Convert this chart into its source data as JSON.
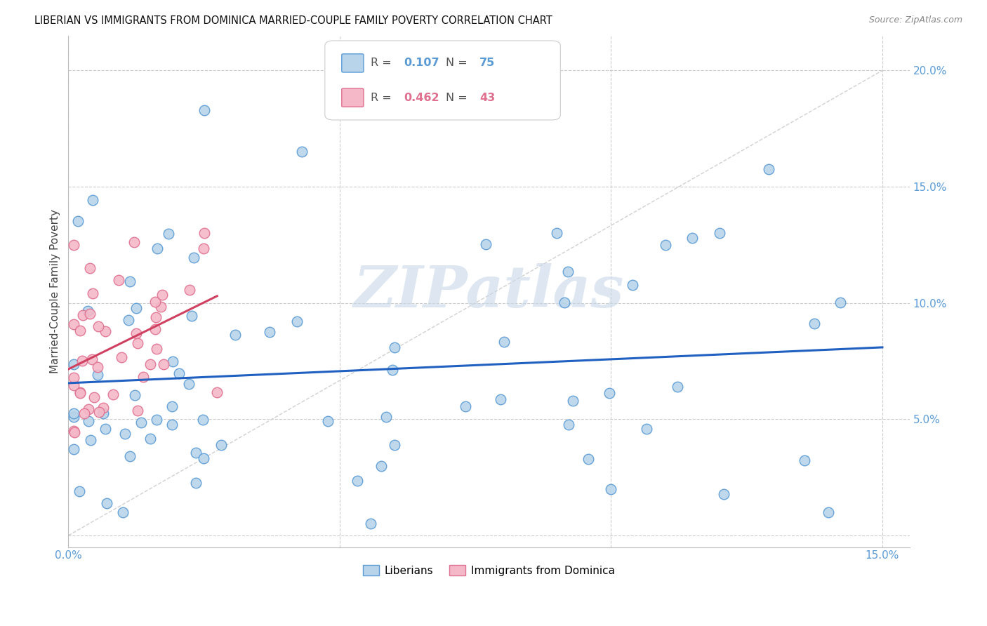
{
  "title": "LIBERIAN VS IMMIGRANTS FROM DOMINICA MARRIED-COUPLE FAMILY POVERTY CORRELATION CHART",
  "source": "Source: ZipAtlas.com",
  "ylabel_label": "Married-Couple Family Poverty",
  "xlim": [
    0.0,
    0.155
  ],
  "ylim": [
    -0.005,
    0.215
  ],
  "liberian_R": 0.107,
  "liberian_N": 75,
  "dominica_R": 0.462,
  "dominica_N": 43,
  "liberian_color": "#b8d4ea",
  "liberian_edge": "#5b9bd5",
  "dominica_color": "#f4b8c8",
  "dominica_edge": "#e07090",
  "trend_liberian_color": "#2060c0",
  "trend_dominica_color": "#d04060",
  "diagonal_color": "#cccccc",
  "background_color": "#ffffff",
  "grid_color": "#cccccc",
  "tick_color": "#5b9bd5",
  "watermark_color": "#c8d8e8",
  "legend_edge": "#cccccc"
}
